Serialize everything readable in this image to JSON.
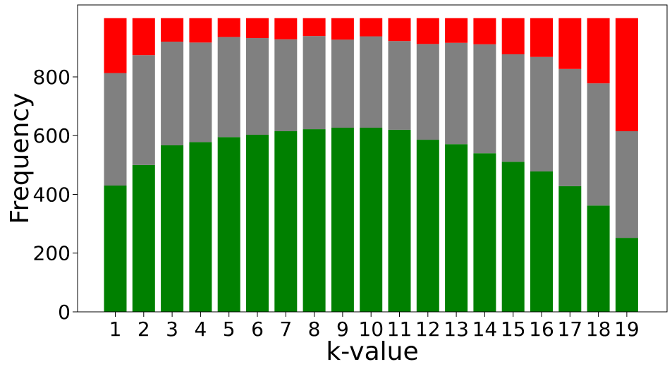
{
  "chart_data": {
    "type": "bar",
    "stacked": true,
    "xlabel": "k-value",
    "ylabel": "Frequency",
    "categories": [
      "1",
      "2",
      "3",
      "4",
      "5",
      "6",
      "7",
      "8",
      "9",
      "10",
      "11",
      "12",
      "13",
      "14",
      "15",
      "16",
      "17",
      "18",
      "19"
    ],
    "ylim": [
      0,
      1045
    ],
    "yticks": [
      0,
      200,
      400,
      600,
      800
    ],
    "grid": false,
    "series": [
      {
        "color": "#008000",
        "values": [
          430,
          500,
          567,
          578,
          595,
          603,
          615,
          622,
          627,
          627,
          620,
          586,
          571,
          540,
          511,
          478,
          428,
          362,
          252
        ]
      },
      {
        "color": "#808080",
        "values": [
          383,
          374,
          353,
          339,
          341,
          329,
          313,
          317,
          300,
          311,
          302,
          326,
          345,
          371,
          366,
          390,
          399,
          416,
          363
        ]
      },
      {
        "color": "#ff0000",
        "values": [
          187,
          126,
          80,
          83,
          64,
          68,
          72,
          61,
          73,
          62,
          78,
          88,
          84,
          89,
          123,
          132,
          173,
          222,
          385
        ]
      }
    ]
  }
}
